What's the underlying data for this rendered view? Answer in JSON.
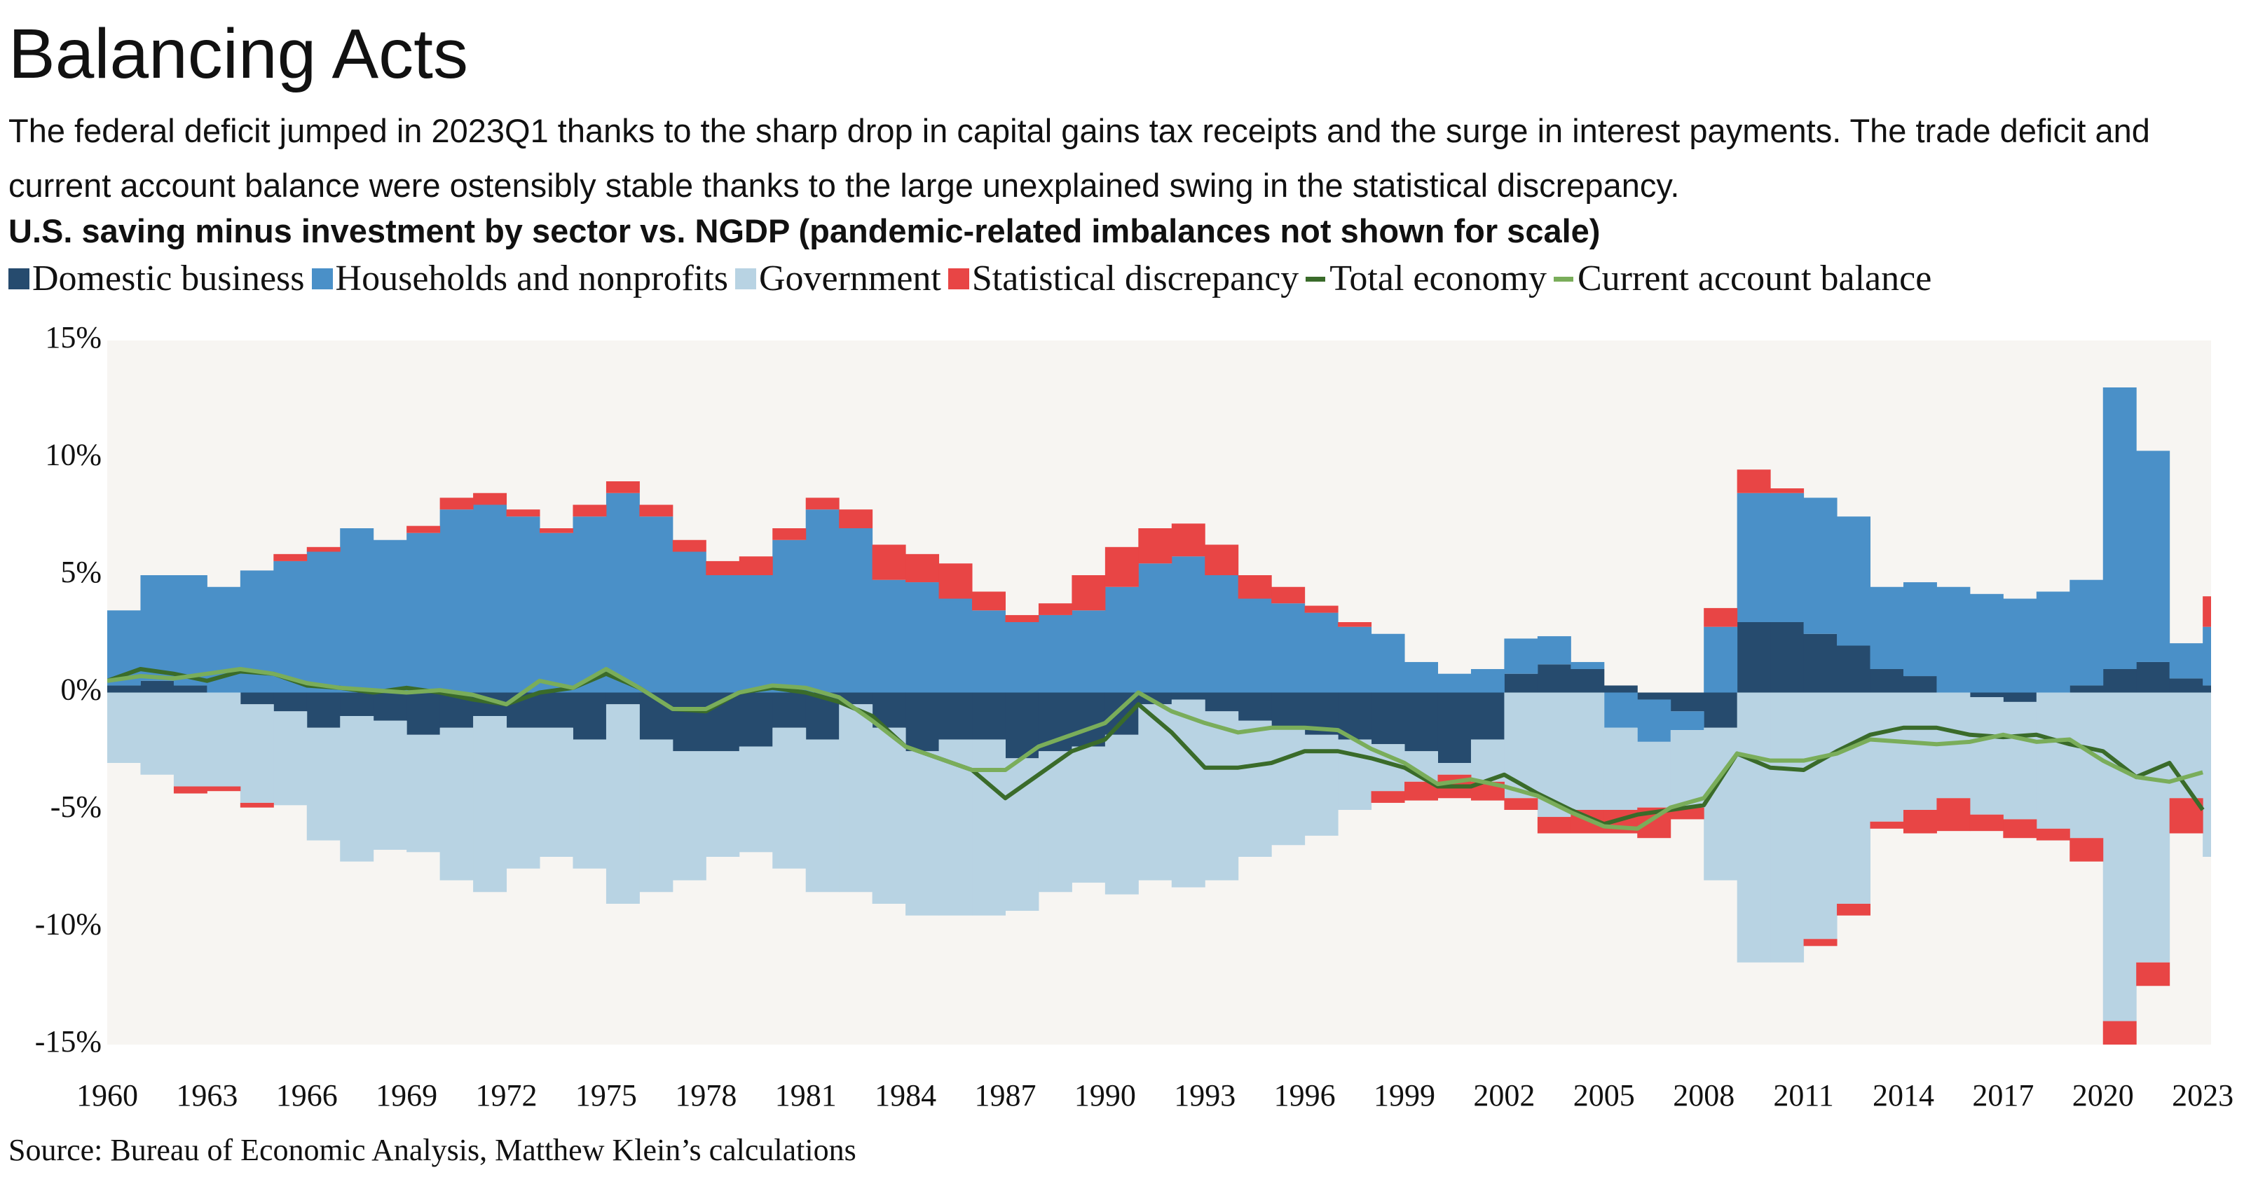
{
  "chart_data": {
    "type": "bar",
    "title": "Balancing Acts",
    "subtitle": "The federal deficit jumped in 2023Q1 thanks to the sharp drop in capital gains tax receipts and the surge in interest payments. The trade deficit and current account balance were ostensibly stable thanks to the large unexplained swing in the statistical discrepancy.",
    "chart_title": "U.S. saving minus investment by sector vs. NGDP (pandemic-related imbalances not shown for scale)",
    "source": "Source: Bureau of Economic Analysis, Matthew Klein’s calculations",
    "x": [
      1960,
      1961,
      1962,
      1963,
      1964,
      1965,
      1966,
      1967,
      1968,
      1969,
      1970,
      1971,
      1972,
      1973,
      1974,
      1975,
      1976,
      1977,
      1978,
      1979,
      1980,
      1981,
      1982,
      1983,
      1984,
      1985,
      1986,
      1987,
      1988,
      1989,
      1990,
      1991,
      1992,
      1993,
      1994,
      1995,
      1996,
      1997,
      1998,
      1999,
      2000,
      2001,
      2002,
      2003,
      2004,
      2005,
      2006,
      2007,
      2008,
      2009,
      2010,
      2011,
      2012,
      2013,
      2014,
      2015,
      2016,
      2017,
      2018,
      2019,
      2020,
      2021,
      2022,
      2023
    ],
    "xlim": [
      1960,
      2023.25
    ],
    "xticks": [
      1960,
      1963,
      1966,
      1969,
      1972,
      1975,
      1978,
      1981,
      1984,
      1987,
      1990,
      1993,
      1996,
      1999,
      2002,
      2005,
      2008,
      2011,
      2014,
      2017,
      2020,
      2023
    ],
    "ylim": [
      -15,
      15
    ],
    "yticks": [
      {
        "value": 15,
        "label": "15%"
      },
      {
        "value": 10,
        "label": "10%"
      },
      {
        "value": 5,
        "label": "5%"
      },
      {
        "value": 0,
        "label": "0%"
      },
      {
        "value": -5,
        "label": "-5%"
      },
      {
        "value": -10,
        "label": "-10%"
      },
      {
        "value": -15,
        "label": "-15%"
      }
    ],
    "grid": false,
    "series": [
      {
        "name": "Domestic business",
        "type": "bar",
        "color": "#264b6e",
        "values": [
          0.3,
          0.5,
          0.3,
          0.0,
          -0.5,
          -0.8,
          -1.5,
          -1.0,
          -1.2,
          -1.8,
          -1.5,
          -1.0,
          -1.5,
          -1.5,
          -2.0,
          -0.5,
          -2.0,
          -2.5,
          -2.5,
          -2.3,
          -1.5,
          -2.0,
          -0.5,
          -1.5,
          -2.5,
          -2.0,
          -2.0,
          -2.8,
          -2.5,
          -2.3,
          -1.8,
          -0.5,
          -0.3,
          -0.8,
          -1.2,
          -1.5,
          -1.8,
          -2.0,
          -2.2,
          -2.5,
          -3.0,
          -2.0,
          0.8,
          1.2,
          1.0,
          0.3,
          -0.3,
          -0.8,
          -1.5,
          3.0,
          3.0,
          2.5,
          2.0,
          1.0,
          0.7,
          0.0,
          -0.2,
          -0.4,
          0.0,
          0.3,
          1.0,
          1.3,
          0.6,
          0.3
        ]
      },
      {
        "name": "Households and nonprofits",
        "type": "bar",
        "color": "#4a90c8",
        "values": [
          3.2,
          4.5,
          4.7,
          4.5,
          5.2,
          5.6,
          6.0,
          7.0,
          6.5,
          6.8,
          7.8,
          8.0,
          7.5,
          6.8,
          7.5,
          8.5,
          7.5,
          6.0,
          5.0,
          5.0,
          6.5,
          7.8,
          7.0,
          4.8,
          4.7,
          4.0,
          3.5,
          3.0,
          3.3,
          3.5,
          4.5,
          5.5,
          5.8,
          5.0,
          4.0,
          3.8,
          3.4,
          2.8,
          2.5,
          1.3,
          0.8,
          1.0,
          1.5,
          1.2,
          0.3,
          -1.5,
          -1.8,
          -0.8,
          2.8,
          5.5,
          5.5,
          5.8,
          5.5,
          3.5,
          4.0,
          4.5,
          4.2,
          4.0,
          4.3,
          4.5,
          12.0,
          9.0,
          1.5,
          2.5
        ]
      },
      {
        "name": "Government",
        "type": "bar",
        "color": "#b8d3e3",
        "values": [
          -3.0,
          -3.5,
          -4.0,
          -4.0,
          -4.2,
          -4.0,
          -4.8,
          -6.2,
          -5.5,
          -5.0,
          -6.5,
          -7.5,
          -6.0,
          -5.5,
          -5.5,
          -8.5,
          -6.5,
          -5.5,
          -4.5,
          -4.5,
          -6.0,
          -6.5,
          -8.0,
          -7.5,
          -7.0,
          -7.5,
          -7.5,
          -6.5,
          -6.0,
          -5.8,
          -6.8,
          -7.5,
          -8.0,
          -7.2,
          -5.8,
          -5.0,
          -4.3,
          -3.0,
          -2.0,
          -1.3,
          -0.5,
          -1.8,
          -4.5,
          -5.3,
          -5.0,
          -3.5,
          -2.8,
          -3.3,
          -6.5,
          -11.5,
          -11.5,
          -10.5,
          -9.0,
          -5.5,
          -5.0,
          -4.5,
          -5.0,
          -5.0,
          -5.8,
          -6.2,
          -14.0,
          -11.5,
          -4.5,
          -7.0
        ]
      },
      {
        "name": "Statistical discrepancy",
        "type": "bar",
        "color": "#e84545",
        "values": [
          0.0,
          0.0,
          -0.3,
          -0.2,
          -0.2,
          0.3,
          0.2,
          0.0,
          0.0,
          0.3,
          0.5,
          0.5,
          0.3,
          0.2,
          0.5,
          0.5,
          0.5,
          0.5,
          0.6,
          0.8,
          0.5,
          0.5,
          0.8,
          1.5,
          1.2,
          1.5,
          0.8,
          0.3,
          0.5,
          1.5,
          1.7,
          1.5,
          1.4,
          1.3,
          1.0,
          0.7,
          0.3,
          0.2,
          -0.5,
          -0.8,
          -1.0,
          -0.8,
          -0.5,
          -0.7,
          -1.0,
          -1.0,
          -1.3,
          -0.5,
          0.8,
          1.0,
          0.2,
          -0.3,
          -0.5,
          -0.3,
          -1.0,
          -1.4,
          -0.7,
          -0.8,
          -0.5,
          -1.0,
          -1.0,
          -1.0,
          -1.5,
          1.3
        ]
      },
      {
        "name": "Total economy",
        "type": "line",
        "color": "#3a6b2a",
        "values": [
          0.5,
          1.0,
          0.8,
          0.5,
          0.9,
          0.8,
          0.3,
          0.2,
          0.0,
          0.2,
          0.0,
          -0.3,
          -0.5,
          0.0,
          0.2,
          0.8,
          0.2,
          -0.7,
          -0.8,
          0.0,
          0.2,
          0.0,
          -0.4,
          -1.0,
          -2.3,
          -2.8,
          -3.3,
          -4.5,
          -3.5,
          -2.5,
          -2.0,
          -0.5,
          -1.7,
          -3.2,
          -3.2,
          -3.0,
          -2.5,
          -2.5,
          -2.8,
          -3.2,
          -4.0,
          -4.0,
          -3.5,
          -4.3,
          -5.0,
          -5.6,
          -5.2,
          -5.0,
          -4.8,
          -2.6,
          -3.2,
          -3.3,
          -2.5,
          -1.8,
          -1.5,
          -1.5,
          -1.8,
          -1.9,
          -1.8,
          -2.2,
          -2.5,
          -3.6,
          -3.0,
          -5.0
        ]
      },
      {
        "name": "Current account balance",
        "type": "line",
        "color": "#7aad5a",
        "values": [
          0.5,
          0.7,
          0.6,
          0.8,
          1.0,
          0.8,
          0.4,
          0.2,
          0.1,
          0.0,
          0.1,
          -0.1,
          -0.5,
          0.5,
          0.2,
          1.0,
          0.2,
          -0.7,
          -0.7,
          0.0,
          0.3,
          0.2,
          -0.2,
          -1.2,
          -2.3,
          -2.8,
          -3.3,
          -3.3,
          -2.3,
          -1.8,
          -1.3,
          0.0,
          -0.8,
          -1.3,
          -1.7,
          -1.5,
          -1.5,
          -1.6,
          -2.4,
          -3.0,
          -3.9,
          -3.7,
          -4.0,
          -4.4,
          -5.1,
          -5.7,
          -5.8,
          -4.9,
          -4.5,
          -2.6,
          -2.9,
          -2.9,
          -2.6,
          -2.0,
          -2.1,
          -2.2,
          -2.1,
          -1.8,
          -2.1,
          -2.0,
          -2.9,
          -3.6,
          -3.8,
          -3.4
        ]
      }
    ]
  }
}
